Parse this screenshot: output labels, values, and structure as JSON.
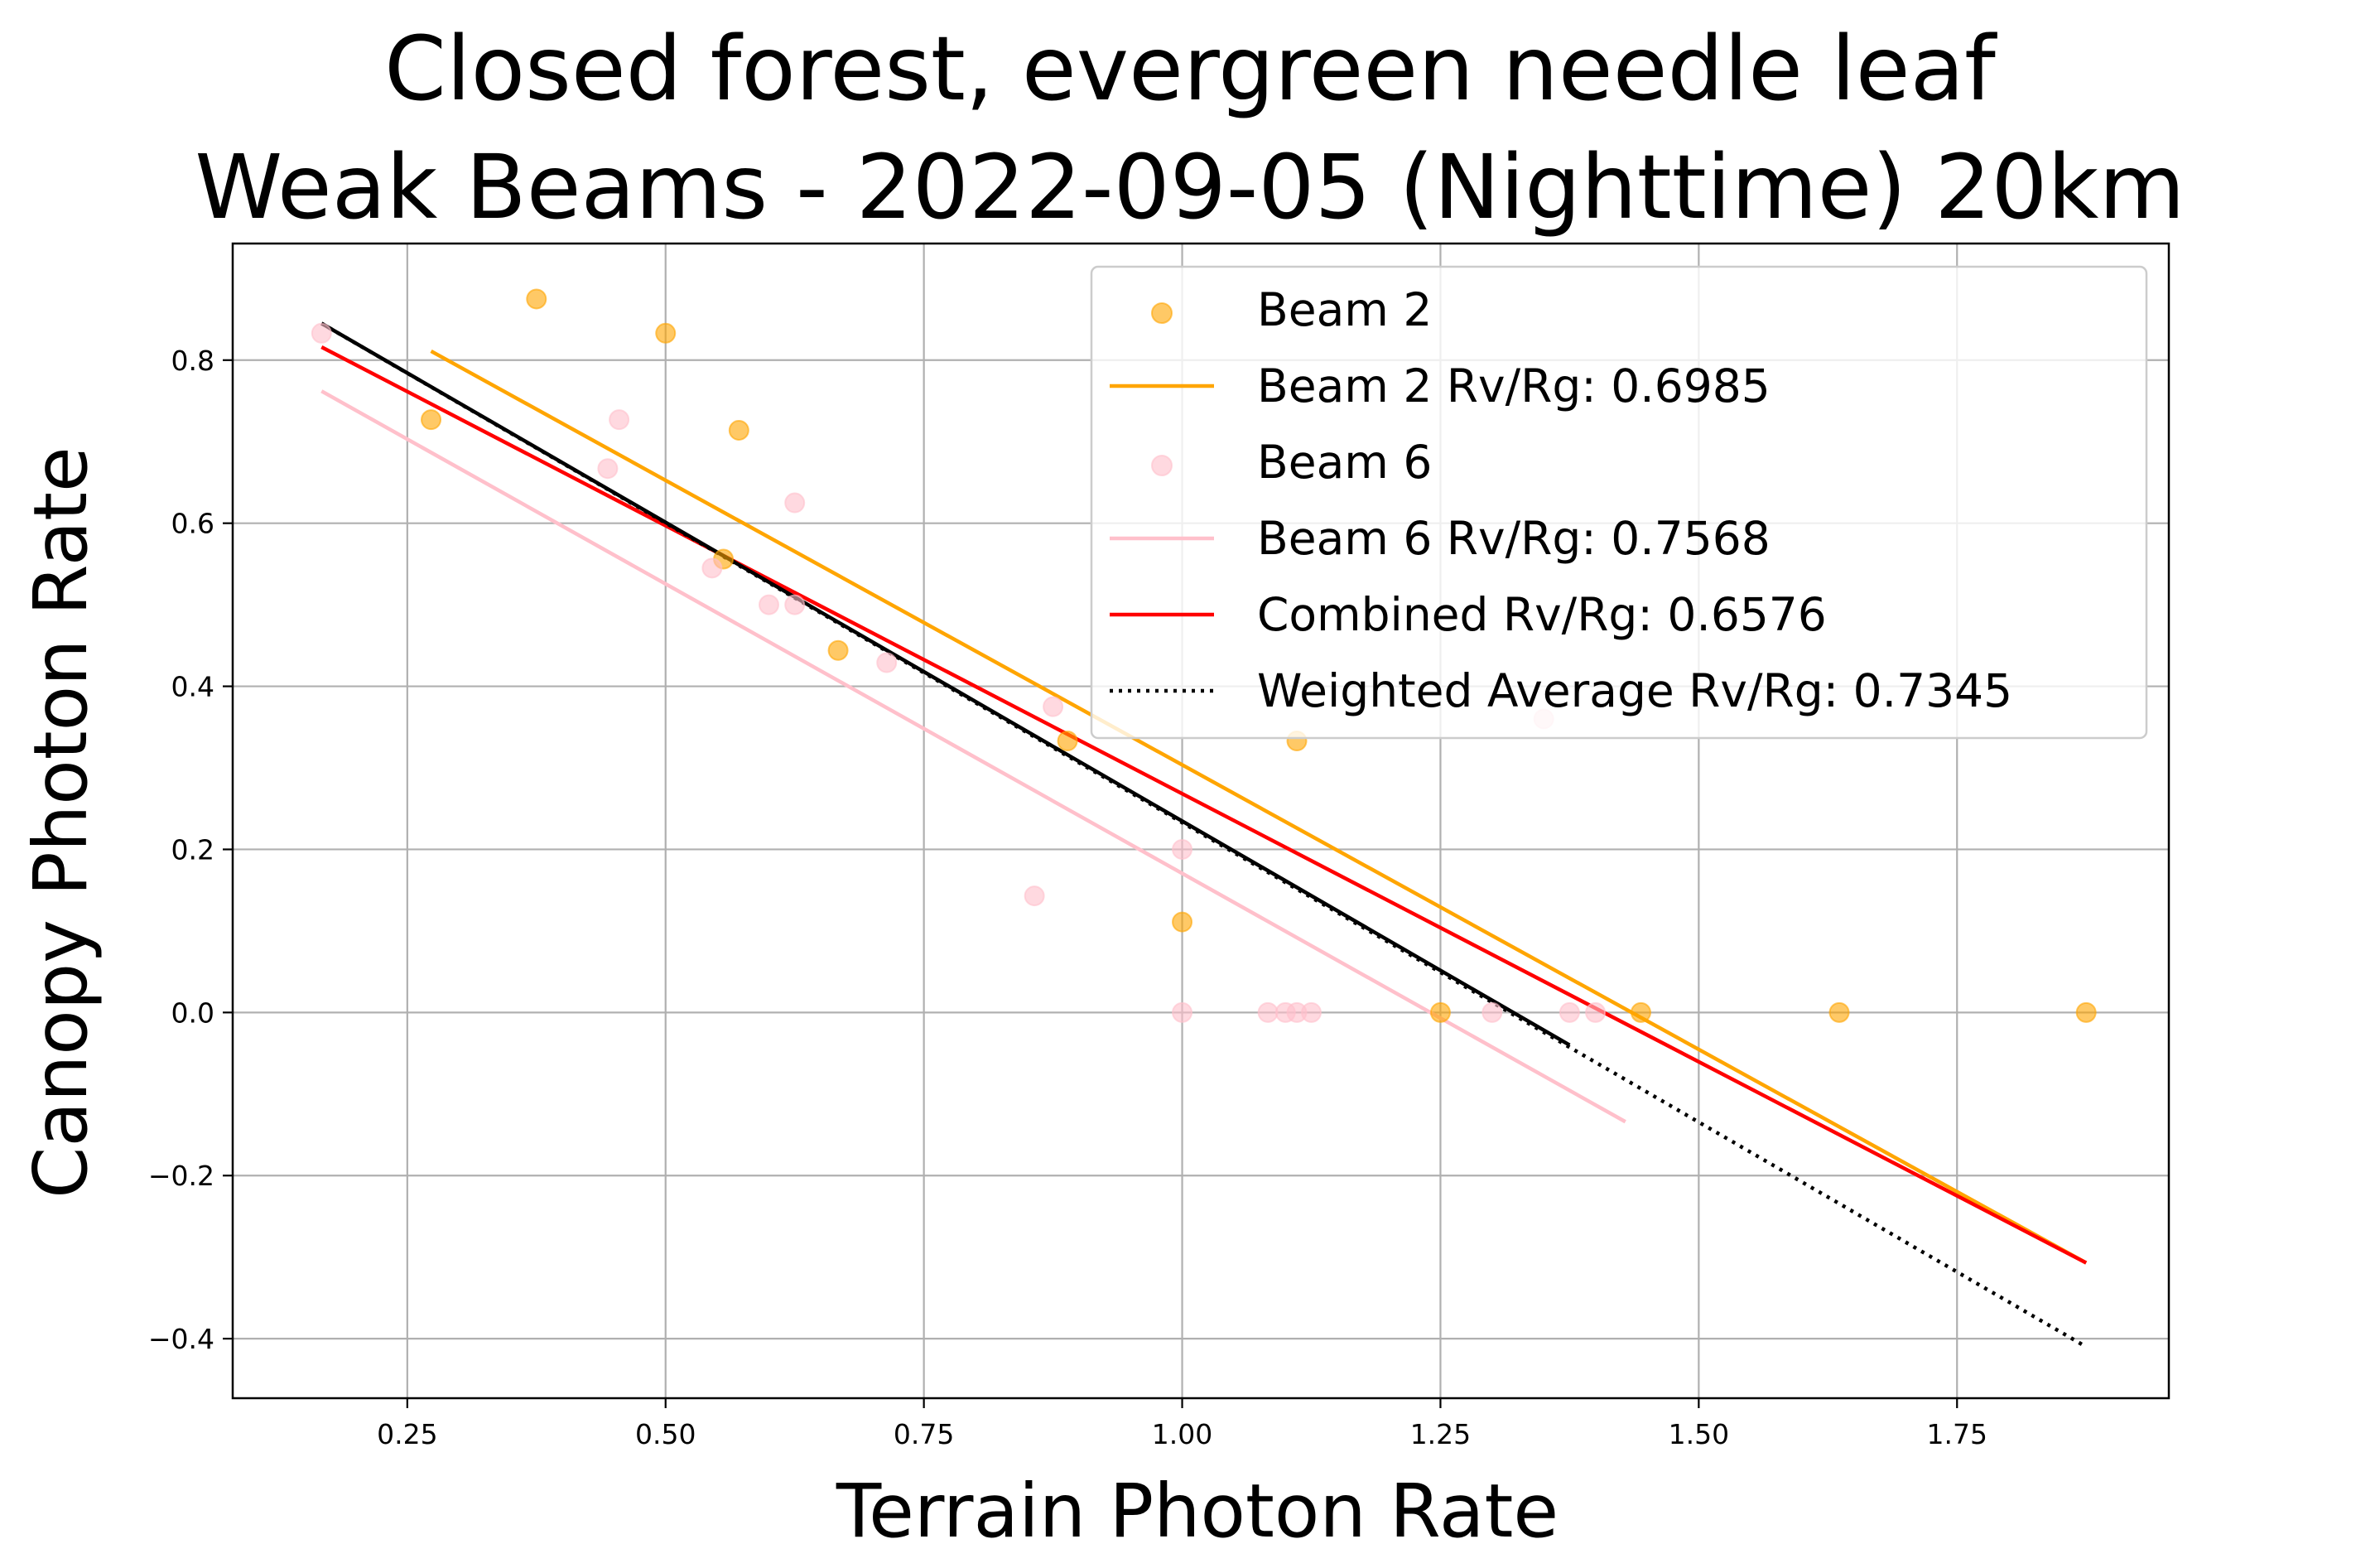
{
  "chart_data": {
    "type": "scatter",
    "title": [
      "Closed forest, evergreen needle leaf",
      "Weak Beams - 2022-09-05 (Nighttime) 20km"
    ],
    "xlabel": "Terrain Photon Rate",
    "ylabel": "Canopy Photon Rate",
    "xlim": [
      0.081,
      1.955
    ],
    "ylim": [
      -0.473,
      0.943
    ],
    "xticks": [
      0.25,
      0.5,
      0.75,
      1.0,
      1.25,
      1.5,
      1.75
    ],
    "xtick_labels": [
      "0.25",
      "0.50",
      "0.75",
      "1.00",
      "1.25",
      "1.50",
      "1.75"
    ],
    "yticks": [
      -0.4,
      -0.2,
      0.0,
      0.2,
      0.4,
      0.6,
      0.8
    ],
    "ytick_labels": [
      "−0.4",
      "−0.2",
      "0.0",
      "0.2",
      "0.4",
      "0.6",
      "0.8"
    ],
    "grid": true,
    "legend_position": "top-right",
    "scatter_series": [
      {
        "name": "Beam 2",
        "color": "#FFA500",
        "alpha": 0.6,
        "points": [
          [
            0.273,
            0.727
          ],
          [
            0.375,
            0.875
          ],
          [
            0.5,
            0.833
          ],
          [
            0.571,
            0.714
          ],
          [
            0.556,
            0.556
          ],
          [
            0.667,
            0.444
          ],
          [
            0.889,
            0.333
          ],
          [
            1.111,
            0.333
          ],
          [
            1.0,
            0.111
          ],
          [
            1.25,
            0.0
          ],
          [
            1.444,
            0.0
          ],
          [
            1.636,
            0.0
          ],
          [
            1.875,
            0.0
          ]
        ]
      },
      {
        "name": "Beam 6",
        "color": "#FFC0CB",
        "alpha": 0.6,
        "points": [
          [
            0.167,
            0.833
          ],
          [
            0.455,
            0.727
          ],
          [
            0.444,
            0.667
          ],
          [
            0.625,
            0.625
          ],
          [
            0.545,
            0.545
          ],
          [
            0.6,
            0.5
          ],
          [
            0.625,
            0.5
          ],
          [
            0.714,
            0.429
          ],
          [
            0.875,
            0.375
          ],
          [
            0.857,
            0.143
          ],
          [
            1.0,
            0.2
          ],
          [
            1.0,
            0.0
          ],
          [
            1.083,
            0.0
          ],
          [
            1.1,
            0.0
          ],
          [
            1.111,
            0.0
          ],
          [
            1.125,
            0.0
          ],
          [
            1.3,
            0.0
          ],
          [
            1.375,
            0.0
          ],
          [
            1.4,
            0.0
          ],
          [
            1.35,
            0.36
          ]
        ]
      }
    ],
    "line_series": [
      {
        "name": "Beam 2 Rv/Rg: 0.6985",
        "color": "#FFA500",
        "style": "solid",
        "points": [
          [
            0.273,
            0.811
          ],
          [
            1.875,
            -0.307
          ]
        ]
      },
      {
        "name": "Beam 6 Rv/Rg: 0.7568",
        "color": "#FFC0CB",
        "style": "solid",
        "points": [
          [
            0.167,
            0.762
          ],
          [
            1.429,
            -0.134
          ]
        ]
      },
      {
        "name": "Combined Rv/Rg: 0.6576",
        "color": "#FF0000",
        "style": "solid",
        "points": [
          [
            0.167,
            0.816
          ],
          [
            1.875,
            -0.307
          ]
        ]
      },
      {
        "name": "Weighted Average Rv/Rg: 0.7345",
        "color": "#000000",
        "style": "dotted",
        "points": [
          [
            0.167,
            0.845
          ],
          [
            1.875,
            -0.41
          ]
        ]
      },
      {
        "name": "",
        "color": "#000000",
        "style": "solid",
        "legend": false,
        "points": [
          [
            0.167,
            0.845
          ],
          [
            1.375,
            -0.04
          ]
        ]
      }
    ],
    "legend": [
      {
        "label": "Beam 2",
        "kind": "marker",
        "color": "#FFA500"
      },
      {
        "label": "Beam 2 Rv/Rg: 0.6985",
        "kind": "line",
        "color": "#FFA500",
        "style": "solid"
      },
      {
        "label": "Beam 6",
        "kind": "marker",
        "color": "#FFC0CB"
      },
      {
        "label": "Beam 6 Rv/Rg: 0.7568",
        "kind": "line",
        "color": "#FFC0CB",
        "style": "solid"
      },
      {
        "label": "Combined Rv/Rg: 0.6576",
        "kind": "line",
        "color": "#FF0000",
        "style": "solid"
      },
      {
        "label": "Weighted Average Rv/Rg: 0.7345",
        "kind": "line",
        "color": "#000000",
        "style": "dotted"
      }
    ]
  }
}
